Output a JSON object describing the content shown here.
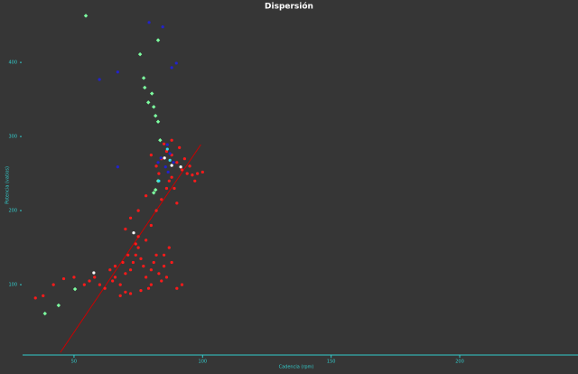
{
  "chart_data": {
    "type": "scatter",
    "title": "Dispersión",
    "x_label": "Cadencia (rpm)",
    "y_label": "Potencia (vatios)",
    "xlim": [
      30,
      246
    ],
    "ylim": [
      5,
      470
    ],
    "xticks": [
      50,
      100,
      150,
      200
    ],
    "yticks": [
      100,
      200,
      300,
      400
    ],
    "axis_color": "#33cccc",
    "background": "#363636",
    "trendline": {
      "color": "#cc0000",
      "x": [
        44.7,
        99.3
      ],
      "values": [
        8.5,
        289
      ]
    },
    "series": [
      {
        "color": "#ff1a1a",
        "marker": "circle",
        "x": [
          60,
          62,
          65,
          66,
          68,
          70,
          72,
          73,
          74,
          75,
          75,
          76,
          77,
          78,
          79,
          80,
          81,
          82,
          83,
          84,
          85,
          86,
          88,
          90,
          92,
          70,
          68,
          72,
          76,
          80,
          85,
          87,
          78,
          74,
          71,
          69,
          64,
          66,
          58,
          56,
          54,
          50,
          46,
          42,
          38,
          35,
          80,
          82,
          84,
          86,
          75,
          78,
          72,
          70,
          88,
          90,
          82,
          84,
          86,
          88,
          90,
          92,
          94,
          96,
          98,
          100,
          85,
          88,
          91,
          93,
          87,
          89,
          83,
          95,
          97,
          80
        ],
        "values": [
          100,
          95,
          105,
          110,
          100,
          115,
          120,
          130,
          140,
          150,
          165,
          135,
          125,
          110,
          95,
          120,
          130,
          140,
          115,
          105,
          125,
          110,
          130,
          95,
          100,
          90,
          85,
          88,
          92,
          100,
          140,
          150,
          160,
          155,
          140,
          130,
          120,
          125,
          110,
          105,
          100,
          110,
          108,
          100,
          85,
          82,
          180,
          200,
          215,
          230,
          200,
          220,
          190,
          175,
          245,
          210,
          260,
          270,
          280,
          275,
          265,
          255,
          250,
          248,
          250,
          252,
          290,
          295,
          285,
          270,
          240,
          230,
          250,
          260,
          240,
          275
        ]
      },
      {
        "color": "#2222cc",
        "marker": "circle",
        "x": [
          79.2,
          84.5,
          59.9,
          67,
          88,
          89.8,
          86.3,
          87.3,
          83.8,
          67,
          85.6,
          88.7,
          86.6,
          82.7
        ],
        "values": [
          454,
          448,
          377,
          387,
          393,
          399,
          289,
          277,
          271,
          259,
          259,
          265,
          252,
          265
        ]
      },
      {
        "color": "#7dffa0",
        "marker": "diamond",
        "x": [
          54.6,
          82.7,
          75.7,
          77.1,
          77.5,
          80.3,
          78.9,
          81,
          81.7,
          82.7,
          83.5,
          81.7,
          81,
          82.7,
          38.7,
          44,
          50.4
        ],
        "values": [
          463,
          430,
          411,
          379,
          366,
          358,
          346,
          340,
          328,
          320,
          295,
          228,
          224,
          240,
          61,
          72,
          94
        ]
      },
      {
        "color": "#ffffff",
        "marker": "circle",
        "x": [
          73.2,
          57.7,
          91.5,
          85.2,
          88
        ],
        "values": [
          170,
          116,
          259,
          271,
          261
        ]
      },
      {
        "color": "#33ddee",
        "marker": "circle",
        "x": [
          86.3,
          83,
          87.3
        ],
        "values": [
          283,
          240,
          268
        ]
      }
    ]
  }
}
